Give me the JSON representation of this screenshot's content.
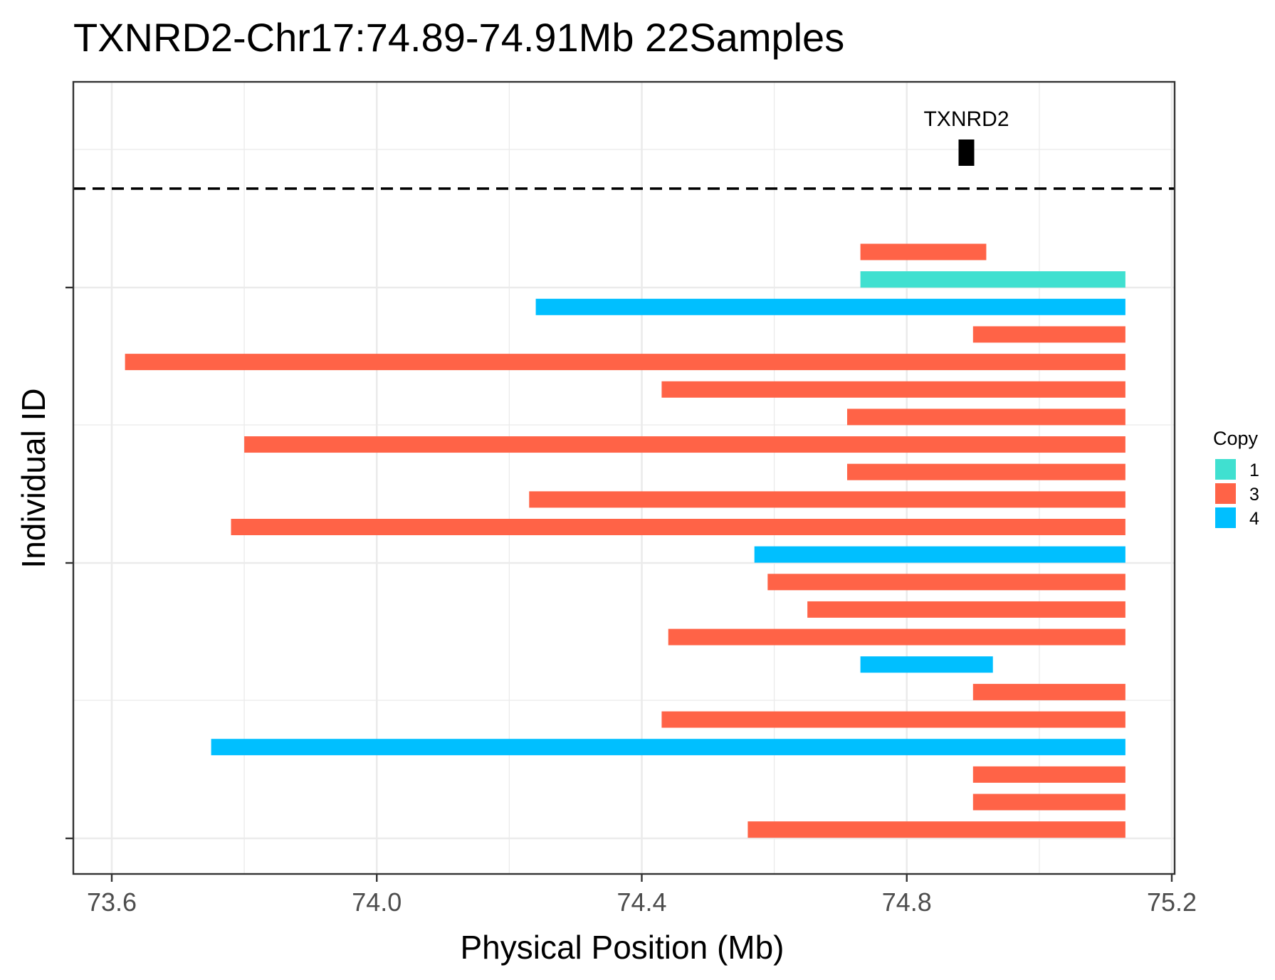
{
  "chart_data": {
    "type": "bar",
    "orientation": "horizontal-segments",
    "title": "TXNRD2-Chr17:74.89-74.91Mb 22Samples",
    "xlabel": "Physical Position (Mb)",
    "ylabel": "Individual ID",
    "xlim": [
      73.54,
      75.2
    ],
    "x_ticks": [
      {
        "value": 73.6,
        "label": "73.6"
      },
      {
        "value": 74.0,
        "label": "74.0"
      },
      {
        "value": 74.4,
        "label": "74.4"
      },
      {
        "value": 74.8,
        "label": "74.8"
      },
      {
        "value": 75.2,
        "label": "75.2"
      }
    ],
    "grid": true,
    "legend": {
      "title": "Copy",
      "position": "right",
      "items": [
        {
          "label": "1",
          "color": "#40E0D0"
        },
        {
          "label": "3",
          "color": "#FF6347"
        },
        {
          "label": "4",
          "color": "#00BFFF"
        }
      ]
    },
    "gene": {
      "name": "TXNRD2",
      "start": 74.89,
      "end": 74.91
    },
    "segments": [
      {
        "start": 74.73,
        "end": 74.92,
        "copy": "3"
      },
      {
        "start": 74.73,
        "end": 75.13,
        "copy": "1"
      },
      {
        "start": 74.24,
        "end": 75.13,
        "copy": "4"
      },
      {
        "start": 74.9,
        "end": 75.13,
        "copy": "3"
      },
      {
        "start": 73.62,
        "end": 75.13,
        "copy": "3"
      },
      {
        "start": 74.43,
        "end": 75.13,
        "copy": "3"
      },
      {
        "start": 74.71,
        "end": 75.13,
        "copy": "3"
      },
      {
        "start": 73.8,
        "end": 75.13,
        "copy": "3"
      },
      {
        "start": 74.71,
        "end": 75.13,
        "copy": "3"
      },
      {
        "start": 74.23,
        "end": 75.13,
        "copy": "3"
      },
      {
        "start": 73.78,
        "end": 75.13,
        "copy": "3"
      },
      {
        "start": 74.57,
        "end": 75.13,
        "copy": "4"
      },
      {
        "start": 74.59,
        "end": 75.13,
        "copy": "3"
      },
      {
        "start": 74.65,
        "end": 75.13,
        "copy": "3"
      },
      {
        "start": 74.44,
        "end": 75.13,
        "copy": "3"
      },
      {
        "start": 74.73,
        "end": 74.93,
        "copy": "4"
      },
      {
        "start": 74.9,
        "end": 75.13,
        "copy": "3"
      },
      {
        "start": 74.43,
        "end": 75.13,
        "copy": "3"
      },
      {
        "start": 73.75,
        "end": 75.13,
        "copy": "4"
      },
      {
        "start": 74.9,
        "end": 75.13,
        "copy": "3"
      },
      {
        "start": 74.9,
        "end": 75.13,
        "copy": "3"
      },
      {
        "start": 74.56,
        "end": 75.13,
        "copy": "3"
      }
    ]
  }
}
